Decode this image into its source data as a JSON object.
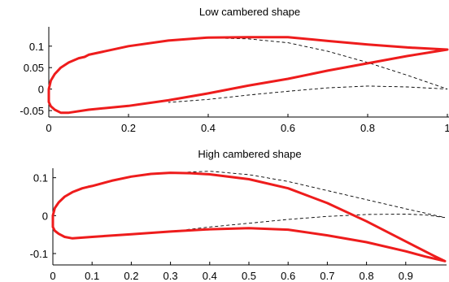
{
  "chart_data": [
    {
      "type": "line",
      "title": "Low cambered shape",
      "xlabel": "",
      "ylabel": "",
      "xlim": [
        0,
        1
      ],
      "ylim": [
        -0.065,
        0.145
      ],
      "grid": false,
      "x_ticks": [
        "0",
        "0.2",
        "0.4",
        "0.6",
        "0.8",
        "1"
      ],
      "y_ticks": [
        "0.1",
        "0.05",
        "0",
        "-0.05"
      ],
      "x_tick_values": [
        0,
        0.2,
        0.4,
        0.6,
        0.8,
        1
      ],
      "y_tick_values": [
        0.1,
        0.05,
        0,
        -0.05
      ],
      "series": [
        {
          "role": "shape",
          "color": "#ee1c1c",
          "style": "solid",
          "points": [
            [
              0.0,
              0.0
            ],
            [
              0.005,
              0.02
            ],
            [
              0.015,
              0.035
            ],
            [
              0.03,
              0.05
            ],
            [
              0.05,
              0.062
            ],
            [
              0.075,
              0.072
            ],
            [
              0.09,
              0.075
            ],
            [
              0.1,
              0.08
            ],
            [
              0.2,
              0.1
            ],
            [
              0.3,
              0.113
            ],
            [
              0.4,
              0.12
            ],
            [
              0.5,
              0.121
            ],
            [
              0.6,
              0.121
            ],
            [
              0.7,
              0.112
            ],
            [
              0.8,
              0.104
            ],
            [
              0.9,
              0.097
            ],
            [
              1.0,
              0.092
            ],
            [
              0.9,
              0.077
            ],
            [
              0.8,
              0.06
            ],
            [
              0.7,
              0.043
            ],
            [
              0.6,
              0.024
            ],
            [
              0.5,
              0.008
            ],
            [
              0.4,
              -0.01
            ],
            [
              0.3,
              -0.026
            ],
            [
              0.2,
              -0.039
            ],
            [
              0.1,
              -0.048
            ],
            [
              0.05,
              -0.055
            ],
            [
              0.03,
              -0.055
            ],
            [
              0.015,
              -0.048
            ],
            [
              0.005,
              -0.04
            ],
            [
              0.0,
              -0.03
            ],
            [
              0.0,
              0.0
            ]
          ]
        },
        {
          "role": "reference",
          "color": "#000000",
          "style": "dashed",
          "points": [
            [
              0.3,
              0.113
            ],
            [
              0.4,
              0.119
            ],
            [
              0.5,
              0.117
            ],
            [
              0.6,
              0.108
            ],
            [
              0.7,
              0.088
            ],
            [
              0.8,
              0.062
            ],
            [
              0.9,
              0.032
            ],
            [
              1.0,
              0.0
            ],
            [
              0.9,
              0.005
            ],
            [
              0.8,
              0.007
            ],
            [
              0.7,
              0.003
            ],
            [
              0.6,
              -0.005
            ],
            [
              0.5,
              -0.014
            ],
            [
              0.4,
              -0.024
            ],
            [
              0.3,
              -0.031
            ]
          ]
        }
      ]
    },
    {
      "type": "line",
      "title": "High cambered shape",
      "xlabel": "",
      "ylabel": "",
      "xlim": [
        0,
        1
      ],
      "ylim": [
        -0.13,
        0.125
      ],
      "grid": false,
      "x_ticks": [
        "0",
        "0.1",
        "0.2",
        "0.3",
        "0.4",
        "0.5",
        "0.6",
        "0.7",
        "0.8",
        "0.9"
      ],
      "y_ticks": [
        "0.1",
        "0",
        "-0.1"
      ],
      "x_tick_values": [
        0,
        0.1,
        0.2,
        0.3,
        0.4,
        0.5,
        0.6,
        0.7,
        0.8,
        0.9
      ],
      "y_tick_values": [
        0.1,
        0,
        -0.1
      ],
      "series": [
        {
          "role": "shape",
          "color": "#ee1c1c",
          "style": "solid",
          "points": [
            [
              0.0,
              0.0
            ],
            [
              0.005,
              0.02
            ],
            [
              0.015,
              0.035
            ],
            [
              0.03,
              0.05
            ],
            [
              0.05,
              0.062
            ],
            [
              0.075,
              0.072
            ],
            [
              0.09,
              0.076
            ],
            [
              0.1,
              0.078
            ],
            [
              0.15,
              0.092
            ],
            [
              0.2,
              0.103
            ],
            [
              0.25,
              0.11
            ],
            [
              0.3,
              0.113
            ],
            [
              0.35,
              0.112
            ],
            [
              0.4,
              0.109
            ],
            [
              0.5,
              0.096
            ],
            [
              0.6,
              0.072
            ],
            [
              0.7,
              0.033
            ],
            [
              0.8,
              -0.015
            ],
            [
              0.9,
              -0.068
            ],
            [
              0.97,
              -0.105
            ],
            [
              1.0,
              -0.12
            ],
            [
              0.95,
              -0.108
            ],
            [
              0.9,
              -0.094
            ],
            [
              0.8,
              -0.07
            ],
            [
              0.7,
              -0.052
            ],
            [
              0.6,
              -0.037
            ],
            [
              0.5,
              -0.033
            ],
            [
              0.4,
              -0.036
            ],
            [
              0.3,
              -0.042
            ],
            [
              0.2,
              -0.049
            ],
            [
              0.1,
              -0.056
            ],
            [
              0.05,
              -0.06
            ],
            [
              0.03,
              -0.056
            ],
            [
              0.015,
              -0.048
            ],
            [
              0.005,
              -0.04
            ],
            [
              0.0,
              -0.03
            ],
            [
              0.0,
              0.0
            ]
          ]
        },
        {
          "role": "reference",
          "color": "#000000",
          "style": "dashed",
          "points": [
            [
              0.3,
              0.113
            ],
            [
              0.4,
              0.117
            ],
            [
              0.5,
              0.108
            ],
            [
              0.6,
              0.09
            ],
            [
              0.7,
              0.066
            ],
            [
              0.8,
              0.042
            ],
            [
              0.9,
              0.018
            ],
            [
              1.0,
              -0.005
            ],
            [
              0.95,
              0.002
            ],
            [
              0.9,
              0.004
            ],
            [
              0.8,
              0.003
            ],
            [
              0.7,
              -0.002
            ],
            [
              0.6,
              -0.01
            ],
            [
              0.5,
              -0.02
            ],
            [
              0.4,
              -0.03
            ],
            [
              0.3,
              -0.042
            ]
          ]
        }
      ]
    }
  ]
}
